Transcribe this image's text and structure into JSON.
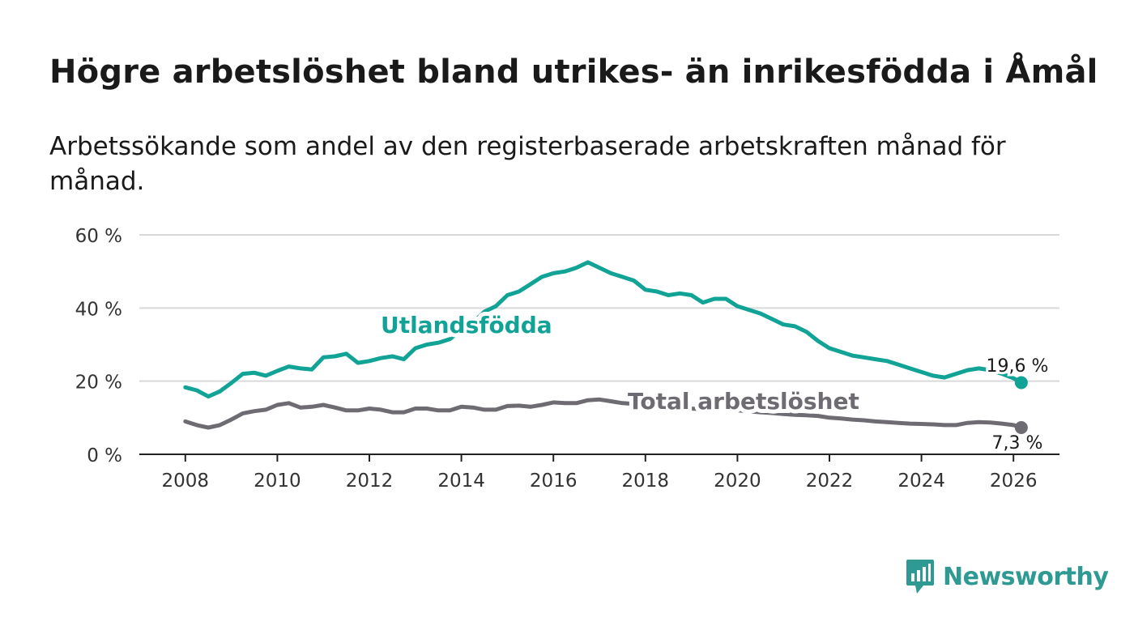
{
  "header": {
    "title": "Högre arbetslöshet bland utrikes- än inrikesfödda i Åmål",
    "subtitle": "Arbetssökande som andel av den registerbaserade arbetskraften månad för månad."
  },
  "brand": {
    "name": "Newsworthy",
    "color": "#2e9a93"
  },
  "chart_data": {
    "type": "line",
    "title": "Högre arbetslöshet bland utrikes- än inrikesfödda i Åmål",
    "xlabel": "",
    "ylabel": "",
    "ylim": [
      0,
      60
    ],
    "xlim": [
      2007.0,
      2027.0
    ],
    "y_ticks": [
      0,
      20,
      40,
      60
    ],
    "y_tick_labels": [
      "0 %",
      "20 %",
      "40 %",
      "60 %"
    ],
    "x_ticks": [
      2008,
      2010,
      2012,
      2014,
      2016,
      2018,
      2020,
      2022,
      2024,
      2026
    ],
    "x_tick_labels": [
      "2008",
      "2010",
      "2012",
      "2014",
      "2016",
      "2018",
      "2020",
      "2022",
      "2024",
      "2026"
    ],
    "grid": true,
    "series": [
      {
        "name": "Utlandsfödda",
        "label": "Utlandsfödda",
        "color": "#12a397",
        "last_label": "19,6 %",
        "x": [
          2008.0,
          2008.25,
          2008.5,
          2008.75,
          2009.0,
          2009.25,
          2009.5,
          2009.75,
          2010.0,
          2010.25,
          2010.5,
          2010.75,
          2011.0,
          2011.25,
          2011.5,
          2011.75,
          2012.0,
          2012.25,
          2012.5,
          2012.75,
          2013.0,
          2013.25,
          2013.5,
          2013.75,
          2014.0,
          2014.25,
          2014.5,
          2014.75,
          2015.0,
          2015.25,
          2015.5,
          2015.75,
          2016.0,
          2016.25,
          2016.5,
          2016.75,
          2017.0,
          2017.25,
          2017.5,
          2017.75,
          2018.0,
          2018.25,
          2018.5,
          2018.75,
          2019.0,
          2019.25,
          2019.5,
          2019.75,
          2020.0,
          2020.25,
          2020.5,
          2020.75,
          2021.0,
          2021.25,
          2021.5,
          2021.75,
          2022.0,
          2022.25,
          2022.5,
          2022.75,
          2023.0,
          2023.25,
          2023.5,
          2023.75,
          2024.0,
          2024.25,
          2024.5,
          2024.75,
          2025.0,
          2025.25,
          2025.5,
          2025.75,
          2026.0,
          2026.17
        ],
        "values": [
          18.3,
          17.5,
          15.8,
          17.2,
          19.5,
          22.0,
          22.3,
          21.5,
          22.8,
          24.0,
          23.5,
          23.2,
          26.5,
          26.8,
          27.5,
          25.0,
          25.5,
          26.3,
          26.8,
          26.0,
          29.0,
          30.0,
          30.5,
          31.5,
          34.0,
          36.0,
          39.0,
          40.5,
          43.5,
          44.5,
          46.5,
          48.5,
          49.5,
          50.0,
          51.0,
          52.5,
          51.0,
          49.5,
          48.5,
          47.5,
          45.0,
          44.5,
          43.5,
          44.0,
          43.5,
          41.5,
          42.5,
          42.5,
          40.5,
          39.5,
          38.5,
          37.0,
          35.5,
          35.0,
          33.5,
          31.0,
          29.0,
          28.0,
          27.0,
          26.5,
          26.0,
          25.5,
          24.5,
          23.5,
          22.5,
          21.5,
          21.0,
          22.0,
          23.0,
          23.5,
          23.0,
          22.0,
          20.8,
          19.6
        ]
      },
      {
        "name": "Total arbetslöshet",
        "label": "Total arbetslöshet",
        "color": "#6e6b73",
        "last_label": "7,3 %",
        "x": [
          2008.0,
          2008.25,
          2008.5,
          2008.75,
          2009.0,
          2009.25,
          2009.5,
          2009.75,
          2010.0,
          2010.25,
          2010.5,
          2010.75,
          2011.0,
          2011.25,
          2011.5,
          2011.75,
          2012.0,
          2012.25,
          2012.5,
          2012.75,
          2013.0,
          2013.25,
          2013.5,
          2013.75,
          2014.0,
          2014.25,
          2014.5,
          2014.75,
          2015.0,
          2015.25,
          2015.5,
          2015.75,
          2016.0,
          2016.25,
          2016.5,
          2016.75,
          2017.0,
          2017.25,
          2017.5,
          2017.75,
          2018.0,
          2018.25,
          2018.5,
          2018.75,
          2019.0,
          2019.25,
          2019.5,
          2019.75,
          2020.0,
          2020.25,
          2020.5,
          2020.75,
          2021.0,
          2021.25,
          2021.5,
          2021.75,
          2022.0,
          2022.25,
          2022.5,
          2022.75,
          2023.0,
          2023.25,
          2023.5,
          2023.75,
          2024.0,
          2024.25,
          2024.5,
          2024.75,
          2025.0,
          2025.25,
          2025.5,
          2025.75,
          2026.0,
          2026.17
        ],
        "values": [
          9.0,
          8.0,
          7.3,
          8.0,
          9.5,
          11.2,
          11.8,
          12.2,
          13.5,
          14.0,
          12.8,
          13.0,
          13.5,
          12.8,
          12.0,
          12.0,
          12.5,
          12.2,
          11.5,
          11.5,
          12.5,
          12.5,
          12.0,
          12.0,
          13.0,
          12.8,
          12.2,
          12.2,
          13.2,
          13.3,
          13.0,
          13.5,
          14.2,
          14.0,
          14.0,
          14.8,
          15.0,
          14.5,
          14.0,
          13.8,
          13.5,
          13.2,
          13.0,
          12.8,
          12.5,
          12.3,
          12.0,
          12.0,
          12.0,
          11.8,
          11.5,
          11.3,
          11.0,
          10.8,
          10.7,
          10.5,
          10.0,
          9.8,
          9.5,
          9.3,
          9.0,
          8.8,
          8.6,
          8.4,
          8.3,
          8.2,
          8.0,
          8.0,
          8.6,
          8.8,
          8.7,
          8.4,
          8.0,
          7.3
        ]
      }
    ]
  }
}
